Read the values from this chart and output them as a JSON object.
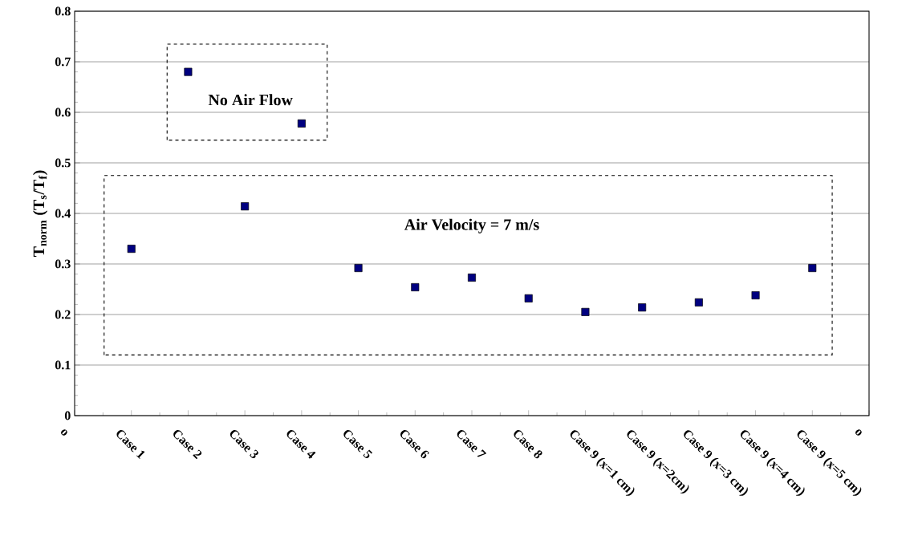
{
  "chart_data": {
    "type": "scatter",
    "ylabel": "T$_{norm}$ (T$_{s}$/T$_{f}$)",
    "categories": [
      "o",
      "Case 1",
      "Case 2",
      "Case 3",
      "Case 4",
      "Case 5",
      "Case 6",
      "Case 7",
      "Case 8",
      "Case 9 (x=1 cm)",
      "Case 9 (x=2cm)",
      "Case 9 (x=3 cm)",
      "Case 9 (x=4 cm)",
      "Case 9 (x=5 cm)",
      "o"
    ],
    "values": [
      null,
      0.33,
      0.68,
      0.414,
      0.578,
      0.292,
      0.254,
      0.273,
      0.232,
      0.205,
      0.214,
      0.224,
      0.238,
      0.292,
      null
    ],
    "color": "#000080",
    "marker": "square",
    "ylim": [
      0,
      0.8
    ],
    "yticks": [
      0,
      0.1,
      0.2,
      0.3,
      0.4,
      0.5,
      0.6,
      0.7,
      0.8
    ],
    "grid": "y",
    "annotations": [
      "No Air Flow",
      "Air Velocity = 7 m/s"
    ]
  }
}
